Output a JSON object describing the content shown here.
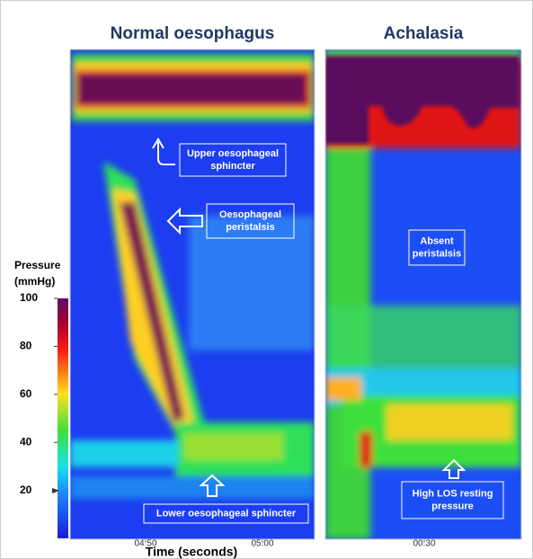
{
  "panels": [
    {
      "title": "Normal oesophagus",
      "x_ticks": [
        "04:50",
        "05:00"
      ]
    },
    {
      "title": "Achalasia",
      "x_ticks": [
        "00:30"
      ]
    }
  ],
  "annotations": [
    {
      "lines": [
        "Upper oesophageal",
        "sphincter"
      ]
    },
    {
      "lines": [
        "Oesophageal",
        "peristalsis"
      ]
    },
    {
      "lines": [
        "Absent",
        "peristalsis"
      ]
    },
    {
      "lines": [
        "Lower oesophageal sphincter"
      ]
    },
    {
      "lines": [
        "High LOS resting",
        "pressure"
      ]
    }
  ],
  "colorbar": {
    "title": [
      "Pressure",
      "(mmHg)"
    ],
    "range": [
      0,
      100
    ],
    "ticks": [
      20,
      40,
      60,
      80,
      100
    ]
  },
  "x_label": "Time (seconds)"
}
